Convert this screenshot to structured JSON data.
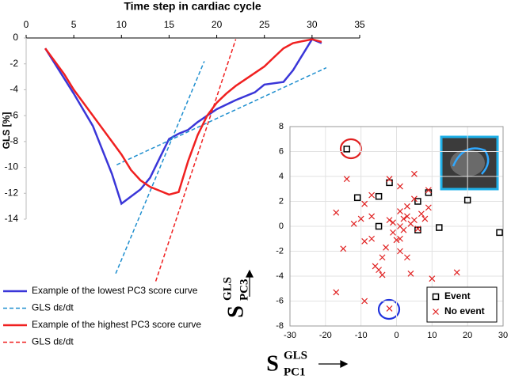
{
  "chart_data": [
    {
      "type": "line",
      "title": "Time step in cardiac cycle",
      "ylabel": "GLS [%]",
      "xlim": [
        0,
        35
      ],
      "xticks": [
        0,
        5,
        10,
        15,
        20,
        25,
        30,
        35
      ],
      "ylim": [
        -14,
        0
      ],
      "yticks": [
        0,
        -2,
        -4,
        -6,
        -8,
        -10,
        -12,
        -14
      ],
      "series": [
        {
          "name": "Example of  the lowest PC3 score curve",
          "color": "#3a36d8",
          "dash": false,
          "x": [
            2,
            5,
            7,
            9,
            10,
            12,
            13,
            14,
            15,
            16,
            17,
            18,
            20,
            22,
            24,
            25,
            27,
            28,
            29,
            30,
            31
          ],
          "values": [
            -0.8,
            -4.3,
            -6.8,
            -10.5,
            -12.8,
            -11.7,
            -10.8,
            -9.3,
            -7.8,
            -7.4,
            -7.1,
            -6.5,
            -5.5,
            -4.8,
            -4.2,
            -3.6,
            -3.4,
            -2.5,
            -1.3,
            -0.1,
            -0.4
          ]
        },
        {
          "name": "GLS dε/dt",
          "color": "#1f8fcf",
          "dash": true,
          "x": [
            9.5,
            31.5,
            null,
            9.4,
            18.7
          ],
          "values": [
            -9.8,
            -2.3,
            null,
            -18.2,
            -1.8
          ]
        },
        {
          "name": "Example of the highest PC3 score curve",
          "color": "#f02020",
          "dash": false,
          "x": [
            2,
            4,
            5,
            7,
            9,
            10,
            11,
            12,
            13,
            14,
            15,
            16,
            17,
            18,
            19,
            20,
            21,
            22,
            23,
            24,
            25,
            26,
            27,
            28,
            30,
            31
          ],
          "values": [
            -0.8,
            -2.8,
            -4.0,
            -6.0,
            -8.0,
            -9.0,
            -10.2,
            -11.0,
            -11.5,
            -11.8,
            -12.1,
            -11.9,
            -9.5,
            -7.5,
            -6.0,
            -5.0,
            -4.3,
            -3.7,
            -3.2,
            -2.7,
            -2.2,
            -1.5,
            -0.8,
            -0.4,
            -0.1,
            -0.3
          ]
        },
        {
          "name": "GLS dε/dt",
          "color": "#f02020",
          "dash": true,
          "x": [
            13.6,
            22.0
          ],
          "values": [
            -18.8,
            -0.1
          ]
        }
      ]
    },
    {
      "type": "scatter",
      "xlabel": {
        "base": "S",
        "sup": "GLS",
        "sub": "PC1"
      },
      "ylabel": {
        "base": "S",
        "sup": "GLS",
        "sub": "PC3"
      },
      "xlim": [
        -30,
        30
      ],
      "xticks": [
        -30,
        -20,
        -10,
        0,
        10,
        20,
        30
      ],
      "ylim": [
        -8,
        8
      ],
      "yticks": [
        8,
        6,
        4,
        2,
        0,
        -2,
        -4,
        -6,
        -8
      ],
      "grid": true,
      "legend": "lower right",
      "series": [
        {
          "name": "Event",
          "marker": "square",
          "color": "#000000",
          "x": [
            -14,
            -11,
            -5,
            -2,
            -5,
            6,
            6,
            9,
            12,
            20,
            29
          ],
          "values": [
            6.2,
            2.3,
            2.4,
            3.5,
            0,
            2,
            -0.3,
            2.7,
            -0.1,
            2.1,
            -0.5
          ]
        },
        {
          "name": "No event",
          "marker": "x",
          "color": "#e02020",
          "x": [
            -14,
            -15,
            -17,
            -17,
            -10,
            -9,
            -9,
            -9,
            -7,
            -7,
            -7,
            -6,
            -5,
            -4,
            -4,
            -3,
            -2,
            -2,
            -2,
            -1,
            -1,
            0,
            1,
            1,
            1,
            1,
            1,
            2,
            2,
            3,
            3,
            4,
            4,
            5,
            5,
            5,
            6,
            7,
            8,
            9,
            9,
            10,
            17,
            -12,
            3
          ],
          "values": [
            3.8,
            -1.8,
            1.1,
            -5.3,
            0.6,
            1.8,
            -1.2,
            -6,
            2.5,
            0.8,
            -1,
            -3.2,
            -3.5,
            -2.5,
            -3.9,
            -1.7,
            3.8,
            0.5,
            -6.6,
            0.3,
            -0.5,
            -1.1,
            3.2,
            1.2,
            0,
            -1,
            -2,
            -0.3,
            0.6,
            -2.5,
            1.6,
            -3.8,
            0.2,
            4.2,
            0.5,
            2.2,
            -0.2,
            1,
            0.6,
            2.9,
            1.5,
            -4.2,
            -3.7,
            0.2,
            0.8
          ]
        }
      ]
    }
  ]
}
